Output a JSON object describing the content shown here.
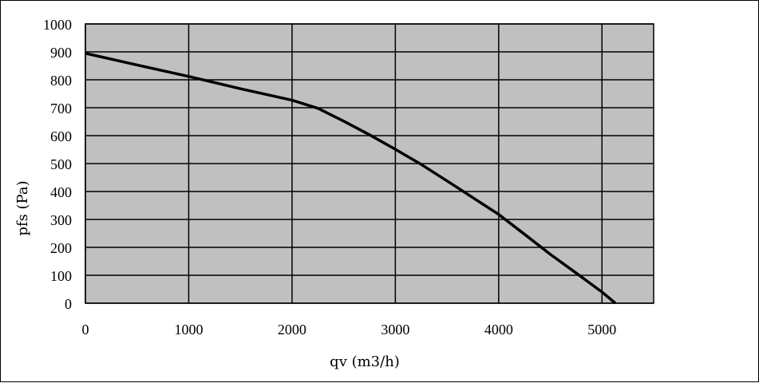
{
  "chart_data": {
    "type": "line",
    "title": "",
    "xlabel": "qv (m3/h)",
    "ylabel": "pfs (Pa)",
    "xlim": [
      0,
      5500
    ],
    "ylim": [
      0,
      1000
    ],
    "x_ticks": [
      0,
      1000,
      2000,
      3000,
      4000,
      5000
    ],
    "y_ticks": [
      0,
      100,
      200,
      300,
      400,
      500,
      600,
      700,
      800,
      900,
      1000
    ],
    "grid": true,
    "legend": "none",
    "colors": {
      "plot_background": "#c0c0c0",
      "grid": "#000000",
      "line": "#000000"
    },
    "series": [
      {
        "x": [
          0,
          500,
          1000,
          1500,
          2000,
          2250,
          2500,
          2750,
          3000,
          3250,
          3500,
          3750,
          4000,
          4250,
          4500,
          4750,
          5000,
          5130
        ],
        "values": [
          895,
          853,
          812,
          768,
          727,
          698,
          652,
          603,
          551,
          497,
          438,
          378,
          318,
          247,
          175,
          108,
          40,
          0
        ]
      }
    ]
  }
}
